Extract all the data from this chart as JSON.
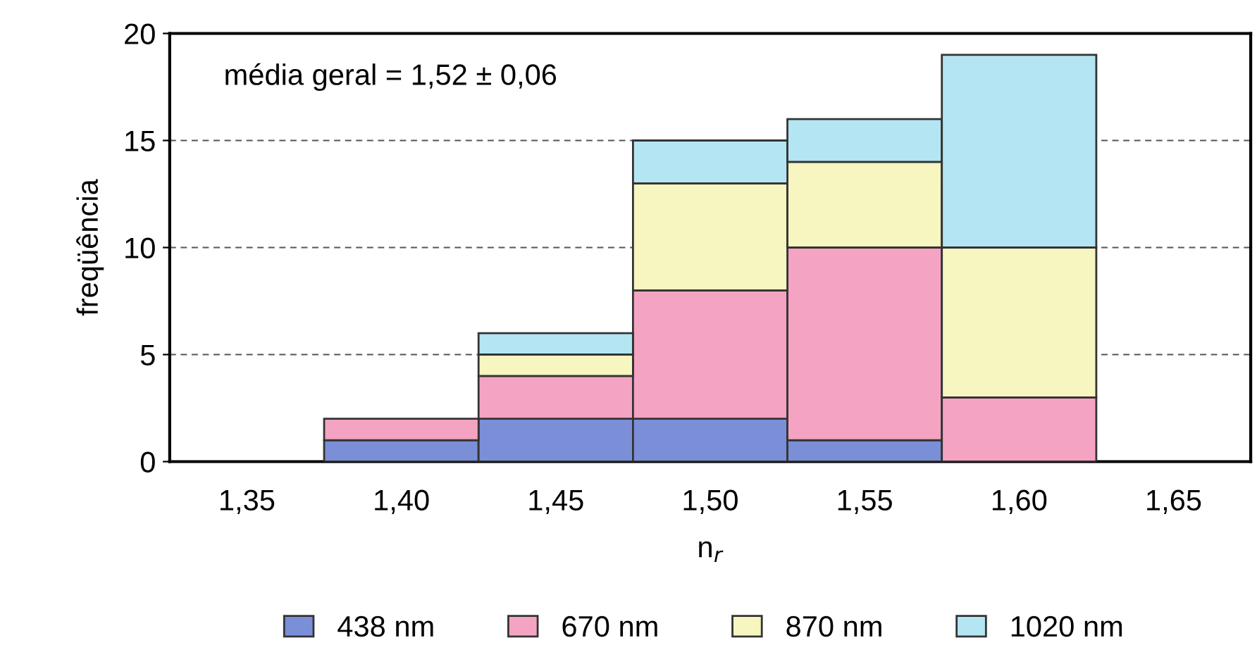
{
  "chart_data": {
    "type": "bar",
    "stacked": true,
    "xlabel": "n$_{r}$",
    "ylabel": "freqüência",
    "categories": [
      "1,35",
      "1,40",
      "1,45",
      "1,50",
      "1,55",
      "1,60",
      "1,65"
    ],
    "series": [
      {
        "name": "438 nm",
        "color": "#7b8fd8",
        "values": [
          0,
          1,
          2,
          2,
          1,
          0,
          0
        ]
      },
      {
        "name": "670 nm",
        "color": "#f5a3c3",
        "values": [
          0,
          1,
          2,
          6,
          9,
          3,
          0
        ]
      },
      {
        "name": "870 nm",
        "color": "#f7f5c0",
        "values": [
          0,
          0,
          1,
          5,
          4,
          7,
          0
        ]
      },
      {
        "name": "1020 nm",
        "color": "#b3e6f2",
        "values": [
          0,
          0,
          1,
          2,
          2,
          9,
          0
        ]
      }
    ],
    "ylim": [
      0,
      20
    ],
    "yticks": [
      0,
      5,
      10,
      15,
      20
    ],
    "grid": "y",
    "legend": "bottom",
    "annotations": [
      "média geral = 1,52 ± 0,06"
    ]
  }
}
